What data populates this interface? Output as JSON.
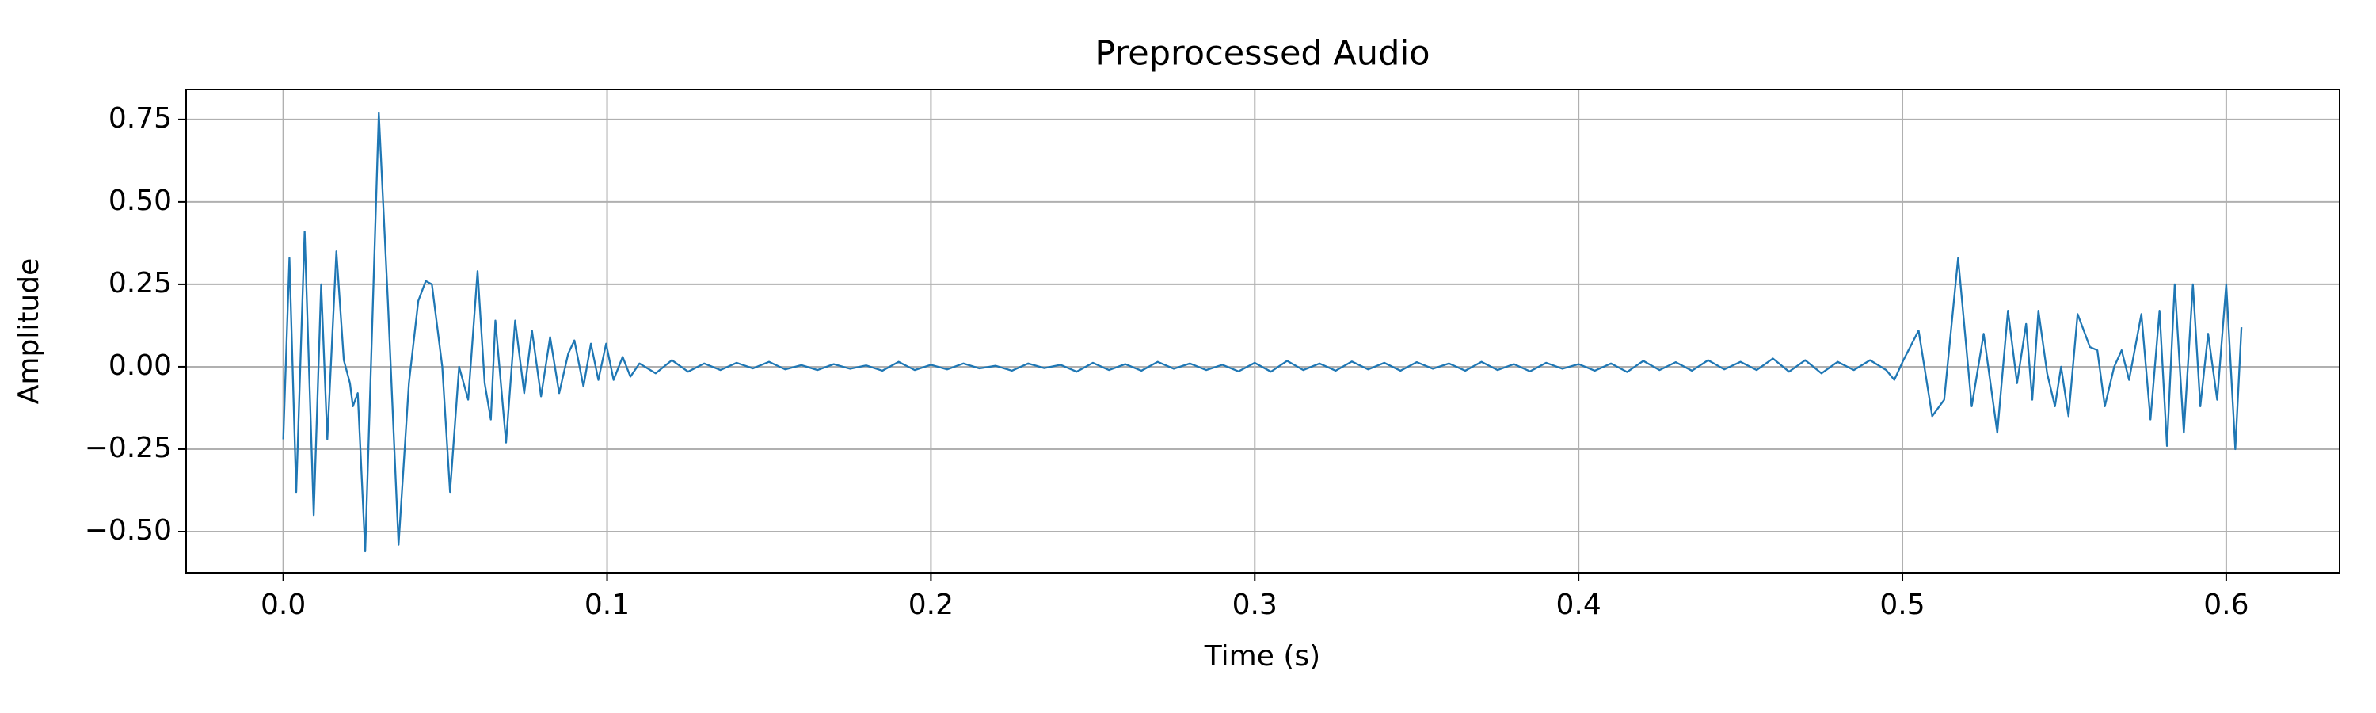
{
  "chart_data": {
    "type": "line",
    "title": "Preprocessed Audio",
    "x_label": "Time (s)",
    "y_label": "Amplitude",
    "color": "#1f77b4",
    "grid": true,
    "xlim": [
      -0.03,
      0.635
    ],
    "ylim": [
      -0.625,
      0.841
    ],
    "xticks": [
      {
        "value": 0,
        "label": "0.0"
      },
      0.1,
      0.2,
      0.3,
      0.4,
      0.5,
      0.6
    ],
    "yticks": [
      {
        "value": -0.5,
        "label": "−0.50"
      },
      {
        "value": -0.25,
        "label": "−0.25"
      },
      {
        "value": 0,
        "label": "0.00"
      },
      0.25,
      {
        "value": 0.5,
        "label": "0.50"
      },
      0.75
    ],
    "x": [
      0,
      0.0019,
      0.004,
      0.0066,
      0.0094,
      0.0117,
      0.0136,
      0.0164,
      0.0187,
      0.0206,
      0.0215,
      0.023,
      0.0253,
      0.0295,
      0.0323,
      0.0356,
      0.0388,
      0.0417,
      0.044,
      0.0459,
      0.0491,
      0.0515,
      0.0543,
      0.0571,
      0.06,
      0.0622,
      0.0641,
      0.0655,
      0.0688,
      0.0716,
      0.0744,
      0.0768,
      0.0796,
      0.0824,
      0.0852,
      0.088,
      0.0899,
      0.0927,
      0.095,
      0.0973,
      0.0997,
      0.102,
      0.1048,
      0.1072,
      0.11,
      0.115,
      0.12,
      0.125,
      0.13,
      0.135,
      0.14,
      0.145,
      0.15,
      0.155,
      0.16,
      0.165,
      0.17,
      0.175,
      0.18,
      0.185,
      0.19,
      0.195,
      0.2,
      0.205,
      0.21,
      0.215,
      0.22,
      0.225,
      0.23,
      0.235,
      0.24,
      0.245,
      0.25,
      0.255,
      0.26,
      0.265,
      0.27,
      0.275,
      0.28,
      0.285,
      0.29,
      0.295,
      0.3,
      0.305,
      0.31,
      0.315,
      0.32,
      0.325,
      0.33,
      0.335,
      0.34,
      0.345,
      0.35,
      0.355,
      0.36,
      0.365,
      0.37,
      0.375,
      0.38,
      0.385,
      0.39,
      0.395,
      0.4,
      0.405,
      0.41,
      0.415,
      0.42,
      0.425,
      0.43,
      0.435,
      0.44,
      0.445,
      0.45,
      0.455,
      0.46,
      0.465,
      0.47,
      0.475,
      0.48,
      0.485,
      0.49,
      0.495,
      0.4975,
      0.5003,
      0.505,
      0.5092,
      0.5129,
      0.5172,
      0.5214,
      0.5251,
      0.5293,
      0.5326,
      0.5354,
      0.5382,
      0.5401,
      0.542,
      0.5447,
      0.5471,
      0.549,
      0.5513,
      0.5541,
      0.5579,
      0.5602,
      0.5625,
      0.5654,
      0.5677,
      0.57,
      0.5738,
      0.5766,
      0.5794,
      0.5817,
      0.5841,
      0.5869,
      0.5897,
      0.592,
      0.5944,
      0.5972,
      0.6,
      0.6028,
      0.6047
    ],
    "values": [
      -0.22,
      0.33,
      -0.38,
      0.41,
      -0.45,
      0.25,
      -0.22,
      0.35,
      0.02,
      -0.05,
      -0.12,
      -0.08,
      -0.56,
      0.77,
      0.2,
      -0.54,
      -0.05,
      0.2,
      0.26,
      0.25,
      0.0,
      -0.38,
      0.0,
      -0.1,
      0.29,
      -0.05,
      -0.16,
      0.14,
      -0.23,
      0.14,
      -0.08,
      0.11,
      -0.09,
      0.09,
      -0.08,
      0.04,
      0.08,
      -0.06,
      0.07,
      -0.04,
      0.07,
      -0.04,
      0.03,
      -0.03,
      0.01,
      -0.02,
      0.02,
      -0.015,
      0.01,
      -0.01,
      0.012,
      -0.005,
      0.015,
      -0.008,
      0.005,
      -0.01,
      0.008,
      -0.006,
      0.004,
      -0.012,
      0.015,
      -0.01,
      0.006,
      -0.008,
      0.01,
      -0.005,
      0.003,
      -0.012,
      0.01,
      -0.004,
      0.006,
      -0.015,
      0.012,
      -0.01,
      0.008,
      -0.012,
      0.015,
      -0.006,
      0.01,
      -0.01,
      0.006,
      -0.014,
      0.012,
      -0.015,
      0.018,
      -0.01,
      0.01,
      -0.012,
      0.016,
      -0.008,
      0.012,
      -0.012,
      0.014,
      -0.006,
      0.01,
      -0.012,
      0.015,
      -0.01,
      0.008,
      -0.014,
      0.012,
      -0.006,
      0.008,
      -0.012,
      0.01,
      -0.016,
      0.018,
      -0.01,
      0.014,
      -0.012,
      0.02,
      -0.008,
      0.015,
      -0.01,
      0.025,
      -0.015,
      0.02,
      -0.02,
      0.015,
      -0.01,
      0.02,
      -0.01,
      -0.04,
      0.02,
      0.11,
      -0.15,
      -0.1,
      0.33,
      -0.12,
      0.1,
      -0.2,
      0.17,
      -0.05,
      0.13,
      -0.1,
      0.17,
      -0.02,
      -0.12,
      0.0,
      -0.15,
      0.16,
      0.06,
      0.05,
      -0.12,
      0.0,
      0.05,
      -0.04,
      0.16,
      -0.16,
      0.17,
      -0.24,
      0.25,
      -0.2,
      0.25,
      -0.12,
      0.1,
      -0.1,
      0.25,
      -0.25,
      0.12
    ]
  }
}
